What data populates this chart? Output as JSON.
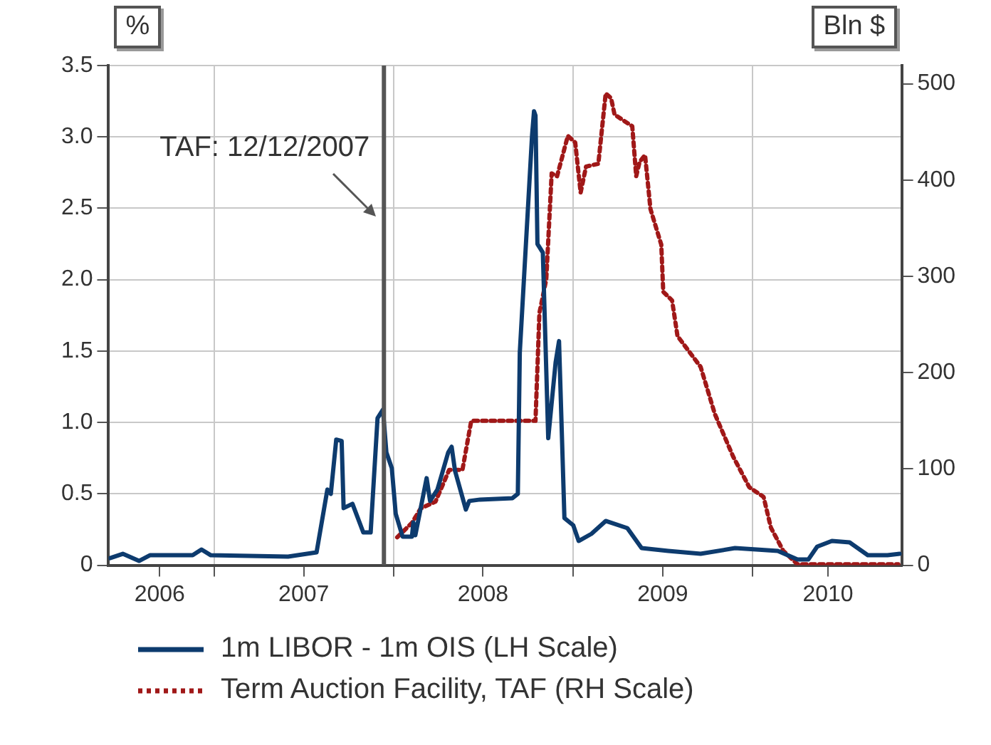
{
  "chart_data": {
    "type": "line",
    "ylabel": "%",
    "y2label": "Bln $",
    "xlim": [
      "2006-05-31",
      "2010-10-31"
    ],
    "xticks": [
      {
        "value": "2006-09-12",
        "label": "2006"
      },
      {
        "value": "2007-01-01",
        "label": null
      },
      {
        "value": "2007-07-02",
        "label": "2007"
      },
      {
        "value": "2008-01-01",
        "label": null
      },
      {
        "value": "2008-07-01",
        "label": "2008"
      },
      {
        "value": "2009-01-01",
        "label": null
      },
      {
        "value": "2009-07-02",
        "label": "2009"
      },
      {
        "value": "2010-01-01",
        "label": null
      },
      {
        "value": "2010-06-03",
        "label": "2010"
      }
    ],
    "ylim": [
      0,
      3.5
    ],
    "yticks": [
      0,
      {
        "value": 0.5,
        "label": "0.5"
      },
      {
        "value": 1,
        "label": "1.0"
      },
      {
        "value": 1.5,
        "label": "1.5"
      },
      {
        "value": 2,
        "label": "2.0"
      },
      {
        "value": 2.5,
        "label": "2.5"
      },
      {
        "value": 3,
        "label": "3.0"
      },
      {
        "value": 3.5,
        "label": "3.5"
      }
    ],
    "y2lim": [
      0,
      519
    ],
    "y2ticks": [
      0,
      100,
      200,
      300,
      400,
      500
    ],
    "grid": true,
    "legend": "bottom",
    "marker": "none",
    "ref_lines": [
      {
        "axis": "x",
        "value": "2007-12-12",
        "label": "TAF: 12/12/2007",
        "color": "#555555"
      }
    ],
    "series": [
      {
        "name": "1m LIBOR - 1m OIS (LH Scale)",
        "color": "#0d3b6e",
        "line_style": "solid",
        "x": [
          "2006-06-03",
          "2006-06-29",
          "2006-08-01",
          "2006-08-23",
          "2006-11-18",
          "2006-12-06",
          "2006-12-25",
          "2007-05-31",
          "2007-07-28",
          "2007-08-19",
          "2007-08-26",
          "2007-09-06",
          "2007-09-17",
          "2007-09-21",
          "2007-10-09",
          "2007-10-31",
          "2007-11-15",
          "2007-11-29",
          "2007-12-10",
          "2007-12-17",
          "2007-12-28",
          "2008-01-05",
          "2008-01-19",
          "2008-02-07",
          "2008-02-10",
          "2008-02-14",
          "2008-03-08",
          "2008-03-15",
          "2008-03-30",
          "2008-04-21",
          "2008-04-28",
          "2008-05-05",
          "2008-05-27",
          "2008-06-03",
          "2008-06-25",
          "2008-08-30",
          "2008-09-10",
          "2008-09-14",
          "2008-10-09",
          "2008-10-13",
          "2008-10-16",
          "2008-10-20",
          "2008-10-31",
          "2008-11-11",
          "2008-11-26",
          "2008-12-03",
          "2008-12-14",
          "2009-01-01",
          "2009-01-12",
          "2009-02-07",
          "2009-03-08",
          "2009-04-21",
          "2009-05-20",
          "2009-07-13",
          "2009-09-17",
          "2009-11-26",
          "2010-02-21",
          "2010-04-02",
          "2010-04-24",
          "2010-05-12",
          "2010-06-11",
          "2010-07-17",
          "2010-08-23",
          "2010-10-02",
          "2010-10-27"
        ],
        "values": [
          0.05,
          0.08,
          0.03,
          0.07,
          0.07,
          0.11,
          0.07,
          0.06,
          0.09,
          0.53,
          0.5,
          0.88,
          0.87,
          0.4,
          0.43,
          0.23,
          0.23,
          1.03,
          1.09,
          0.79,
          0.68,
          0.36,
          0.2,
          0.2,
          0.3,
          0.21,
          0.61,
          0.45,
          0.53,
          0.79,
          0.83,
          0.66,
          0.39,
          0.45,
          0.46,
          0.47,
          0.5,
          1.49,
          3.01,
          3.18,
          3.15,
          2.25,
          2.19,
          0.89,
          1.42,
          1.57,
          0.33,
          0.28,
          0.17,
          0.22,
          0.31,
          0.26,
          0.12,
          0.1,
          0.08,
          0.12,
          0.1,
          0.04,
          0.04,
          0.13,
          0.17,
          0.16,
          0.07,
          0.07,
          0.08
        ]
      },
      {
        "name": "Term Auction Facility, TAF (RH Scale)",
        "color": "#a01818",
        "line_style": "dotted",
        "axis": "y2",
        "x": [
          "2008-01-08",
          "2008-02-07",
          "2008-02-25",
          "2008-03-26",
          "2008-04-23",
          "2008-05-20",
          "2008-06-07",
          "2008-10-16",
          "2008-10-24",
          "2008-11-07",
          "2008-11-18",
          "2008-11-29",
          "2008-12-21",
          "2009-01-05",
          "2009-01-16",
          "2009-01-27",
          "2009-02-21",
          "2009-03-08",
          "2009-03-19",
          "2009-03-26",
          "2009-05-01",
          "2009-05-09",
          "2009-05-16",
          "2009-05-27",
          "2009-06-07",
          "2009-06-29",
          "2009-07-03",
          "2009-07-21",
          "2009-08-01",
          "2009-09-17",
          "2009-10-16",
          "2009-11-22",
          "2009-12-25",
          "2010-01-23",
          "2010-02-07",
          "2010-03-04",
          "2010-04-02",
          "2010-10-24"
        ],
        "values": [
          29,
          44,
          59,
          66,
          99,
          99,
          150,
          150,
          262,
          297,
          407,
          404,
          446,
          439,
          387,
          414,
          417,
          490,
          485,
          468,
          456,
          404,
          419,
          426,
          370,
          333,
          284,
          275,
          238,
          206,
          157,
          113,
          81,
          71,
          39,
          15,
          1,
          1
        ]
      }
    ]
  }
}
